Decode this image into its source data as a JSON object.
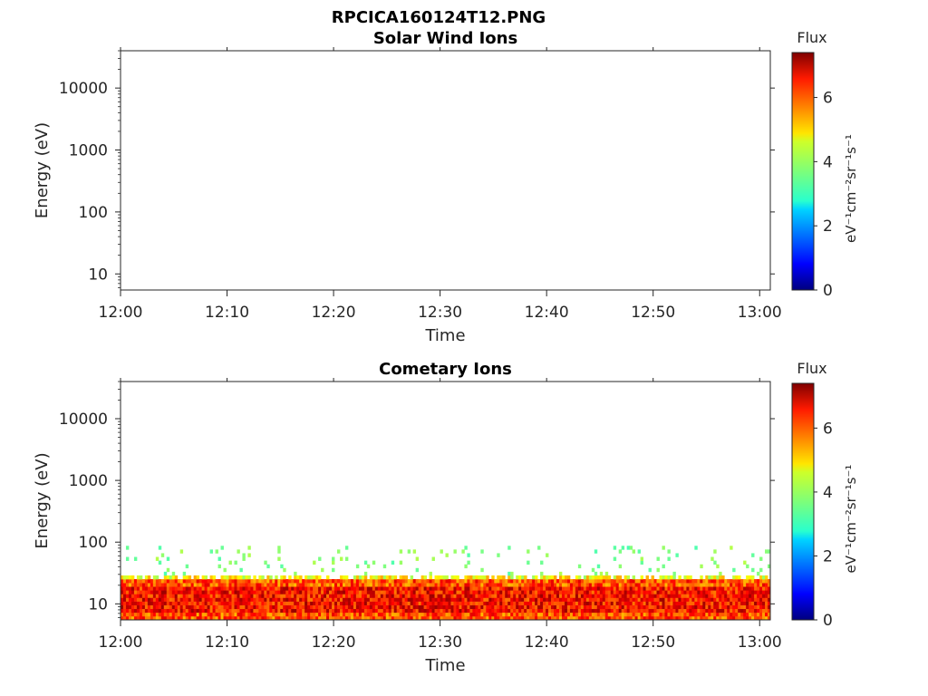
{
  "figure_title": "RPCICA160124T12.PNG",
  "chart_data": [
    {
      "type": "heatmap",
      "title": "Solar Wind Ions",
      "xlabel": "Time",
      "ylabel": "Energy (eV)",
      "xlim": [
        "12:00",
        "13:01"
      ],
      "x_ticks": [
        "12:00",
        "12:10",
        "12:20",
        "12:30",
        "12:40",
        "12:50",
        "13:00"
      ],
      "y_scale": "log",
      "ylim": [
        5.5,
        40000
      ],
      "y_ticks": [
        "10",
        "100",
        "1000",
        "10000"
      ],
      "colorbar": {
        "title": "Flux",
        "label": "eV⁻¹cm⁻²sr⁻¹s⁻¹",
        "range": [
          0,
          7.4
        ],
        "ticks": [
          "0",
          "2",
          "4",
          "6"
        ],
        "colormap": "jet"
      },
      "grid": false,
      "observations": "no significant flux recorded"
    },
    {
      "type": "heatmap",
      "title": "Cometary Ions",
      "xlabel": "Time",
      "ylabel": "Energy (eV)",
      "xlim": [
        "12:00",
        "13:01"
      ],
      "x_ticks": [
        "12:00",
        "12:10",
        "12:20",
        "12:30",
        "12:40",
        "12:50",
        "13:00"
      ],
      "y_scale": "log",
      "ylim": [
        5.5,
        40000
      ],
      "y_ticks": [
        "10",
        "100",
        "1000",
        "10000"
      ],
      "colorbar": {
        "title": "Flux",
        "label": "eV⁻¹cm⁻²sr⁻¹s⁻¹",
        "range": [
          0,
          7.4
        ],
        "ticks": [
          "0",
          "2",
          "4",
          "6"
        ],
        "colormap": "jet"
      },
      "grid": false,
      "observations": "high flux (5-7) between 5.5 and ~25 eV throughout the hour; sporadic bursts up to ~80 eV near 12:10, 12:14, 12:33, 12:50 and 12:55"
    }
  ]
}
